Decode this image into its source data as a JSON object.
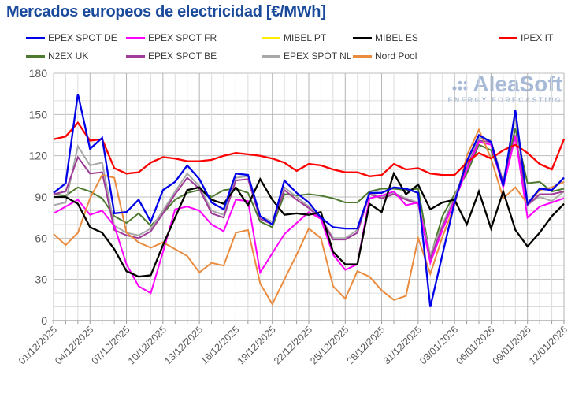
{
  "title": "Mercados europeos de electricidad [€/MWh]",
  "watermark": {
    "brand": "AleaSoft",
    "tagline": "ENERGY FORECASTING",
    "color": "#a6bad8"
  },
  "chart_data": {
    "type": "line",
    "title": "Mercados europeos de electricidad [€/MWh]",
    "xlabel": "",
    "ylabel": "",
    "ylim": [
      0,
      180
    ],
    "ytick_step": 30,
    "y_minor_step": 10,
    "x_tick_every_days": 3,
    "grid": "minor and major gridlines on, light gray",
    "legend_position": "top, two rows",
    "x_tick_labels": [
      "01/12/2025",
      "04/12/2025",
      "07/12/2025",
      "10/12/2025",
      "13/12/2025",
      "16/12/2025",
      "19/12/2025",
      "22/12/2025",
      "25/12/2025",
      "28/12/2025",
      "31/12/2025",
      "03/01/2026",
      "06/01/2026",
      "09/01/2026",
      "12/01/2026"
    ],
    "dates": [
      "01/12/2025",
      "02/12/2025",
      "03/12/2025",
      "04/12/2025",
      "05/12/2025",
      "06/12/2025",
      "07/12/2025",
      "08/12/2025",
      "09/12/2025",
      "10/12/2025",
      "11/12/2025",
      "12/12/2025",
      "13/12/2025",
      "14/12/2025",
      "15/12/2025",
      "16/12/2025",
      "17/12/2025",
      "18/12/2025",
      "19/12/2025",
      "20/12/2025",
      "21/12/2025",
      "22/12/2025",
      "23/12/2025",
      "24/12/2025",
      "25/12/2025",
      "26/12/2025",
      "27/12/2025",
      "28/12/2025",
      "29/12/2025",
      "30/12/2025",
      "31/12/2025",
      "01/01/2026",
      "02/01/2026",
      "03/01/2026",
      "04/01/2026",
      "05/01/2026",
      "06/01/2026",
      "07/01/2026",
      "08/01/2026",
      "09/01/2026",
      "10/01/2026",
      "11/01/2026",
      "12/01/2026"
    ],
    "series": [
      {
        "name": "EPEX SPOT DE",
        "color": "#0000e8",
        "values": [
          93,
          100,
          165,
          125,
          133,
          78,
          79,
          88,
          72,
          95,
          101,
          113,
          103,
          86,
          81,
          107,
          106,
          76,
          70,
          102,
          93,
          86,
          75,
          68,
          67,
          67,
          93,
          93,
          97,
          96,
          93,
          10,
          48,
          86,
          116,
          135,
          130,
          98,
          153,
          85,
          96,
          95,
          104
        ]
      },
      {
        "name": "EPEX SPOT FR",
        "color": "#ff00ff",
        "values": [
          78,
          83,
          88,
          77,
          80,
          69,
          41,
          25,
          20,
          50,
          81,
          83,
          80,
          70,
          65,
          88,
          87,
          35,
          49,
          63,
          71,
          79,
          74,
          48,
          37,
          41,
          89,
          91,
          94,
          84,
          86,
          42,
          66,
          87,
          110,
          130,
          128,
          97,
          134,
          75,
          83,
          86,
          89
        ]
      },
      {
        "name": "MIBEL PT",
        "color": "#ffeb00",
        "values": [
          90,
          90,
          85,
          68,
          64,
          52,
          36,
          32,
          33,
          55,
          75,
          95,
          97,
          88,
          85,
          97,
          84,
          103,
          88,
          77,
          78,
          77,
          79,
          50,
          41,
          41,
          85,
          79,
          107,
          92,
          99,
          81,
          86,
          88,
          70,
          94,
          67,
          94,
          66,
          54,
          64,
          76,
          85
        ]
      },
      {
        "name": "MIBEL ES",
        "color": "#000000",
        "values": [
          90,
          90,
          85,
          68,
          64,
          52,
          36,
          32,
          33,
          55,
          75,
          95,
          97,
          88,
          85,
          97,
          84,
          103,
          88,
          77,
          78,
          77,
          79,
          50,
          41,
          41,
          85,
          79,
          107,
          92,
          99,
          81,
          86,
          88,
          70,
          94,
          67,
          94,
          66,
          54,
          64,
          76,
          85
        ]
      },
      {
        "name": "IPEX IT",
        "color": "#ff0000",
        "values": [
          132,
          134,
          144,
          131,
          132,
          111,
          107,
          108,
          115,
          119,
          118,
          116,
          116,
          117,
          120,
          122,
          121,
          120,
          118,
          115,
          109,
          114,
          113,
          110,
          108,
          108,
          105,
          106,
          114,
          110,
          111,
          107,
          106,
          106,
          115,
          122,
          118,
          124,
          128,
          122,
          114,
          110,
          132
        ]
      },
      {
        "name": "N2EX UK",
        "color": "#4d7a2e",
        "values": [
          92,
          91,
          97,
          94,
          89,
          76,
          71,
          78,
          69,
          78,
          88,
          93,
          95,
          90,
          95,
          96,
          93,
          72,
          68,
          92,
          91,
          92,
          91,
          89,
          86,
          86,
          94,
          96,
          96,
          95,
          96,
          46,
          76,
          92,
          107,
          128,
          124,
          101,
          140,
          100,
          101,
          94,
          96
        ]
      },
      {
        "name": "EPEX SPOT BE",
        "color": "#a03c9a",
        "values": [
          92,
          94,
          119,
          107,
          108,
          66,
          62,
          60,
          65,
          78,
          92,
          104,
          96,
          78,
          75,
          102,
          103,
          74,
          70,
          95,
          88,
          82,
          74,
          59,
          59,
          64,
          92,
          89,
          92,
          88,
          85,
          45,
          68,
          88,
          111,
          131,
          130,
          100,
          135,
          84,
          92,
          92,
          94
        ]
      },
      {
        "name": "EPEX SPOT NL",
        "color": "#a8a8a8",
        "values": [
          84,
          86,
          127,
          113,
          115,
          69,
          64,
          62,
          67,
          80,
          94,
          107,
          98,
          80,
          77,
          104,
          105,
          76,
          72,
          97,
          90,
          83,
          75,
          60,
          60,
          66,
          93,
          90,
          93,
          89,
          86,
          48,
          70,
          90,
          113,
          133,
          131,
          101,
          148,
          85,
          90,
          87,
          94
        ]
      },
      {
        "name": "Nord Pool",
        "color": "#ea8b3e",
        "values": [
          63,
          55,
          64,
          89,
          106,
          104,
          64,
          57,
          53,
          57,
          52,
          47,
          35,
          42,
          40,
          64,
          66,
          27,
          12,
          30,
          48,
          67,
          60,
          25,
          16,
          36,
          32,
          22,
          15,
          18,
          60,
          34,
          61,
          84,
          120,
          139,
          118,
          89,
          97,
          85,
          95,
          97,
          101
        ]
      }
    ]
  }
}
